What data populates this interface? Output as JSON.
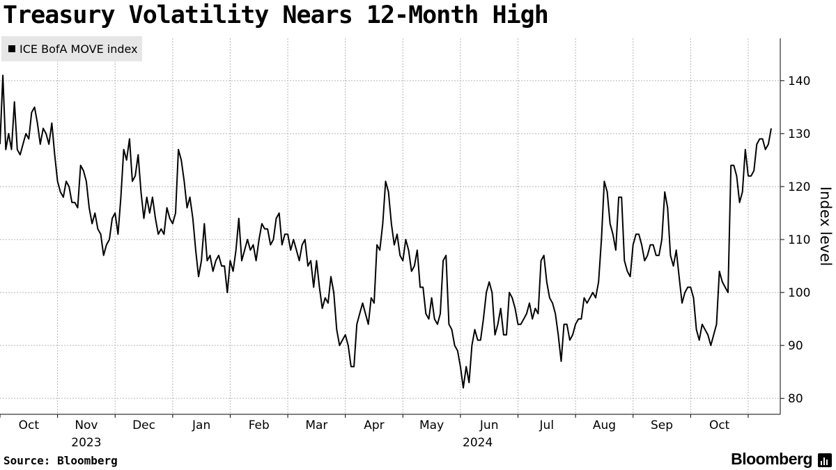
{
  "header": {
    "title": "Treasury Volatility Nears 12-Month High"
  },
  "footer": {
    "source": "Source: Bloomberg",
    "brand": "Bloomberg"
  },
  "colors": {
    "line": "#000000",
    "grid": "#b3b3b3",
    "legend_bg": "#e6e6e6"
  },
  "chart_data": {
    "type": "line",
    "title": "Treasury Volatility Nears 12-Month High",
    "ylabel": "Index level",
    "xlabel": "",
    "ylim": [
      77,
      148
    ],
    "y_ticks": [
      80,
      90,
      100,
      110,
      120,
      130,
      140
    ],
    "y_tick_labels": [
      "80",
      "90",
      "100",
      "110",
      "120",
      "130",
      "140"
    ],
    "x_range": [
      0,
      13.4
    ],
    "x_tick_positions": [
      0,
      1,
      2,
      3,
      4,
      5,
      6,
      7,
      8,
      9,
      10,
      11,
      12,
      13
    ],
    "month_labels": [
      {
        "label": "Oct",
        "x": 0.5
      },
      {
        "label": "Nov",
        "x": 1.5
      },
      {
        "label": "Dec",
        "x": 2.5
      },
      {
        "label": "Jan",
        "x": 3.5
      },
      {
        "label": "Feb",
        "x": 4.5
      },
      {
        "label": "Mar",
        "x": 5.5
      },
      {
        "label": "Apr",
        "x": 6.5
      },
      {
        "label": "May",
        "x": 7.5
      },
      {
        "label": "Jun",
        "x": 8.5
      },
      {
        "label": "Jul",
        "x": 9.5
      },
      {
        "label": "Aug",
        "x": 10.5
      },
      {
        "label": "Sep",
        "x": 11.5
      },
      {
        "label": "Oct",
        "x": 12.5
      }
    ],
    "year_labels": [
      {
        "label": "2023",
        "x": 1.5
      },
      {
        "label": "2024",
        "x": 8.3
      }
    ],
    "grid": true,
    "legend_position": "top-left",
    "series": [
      {
        "name": "ICE BofA MOVE index",
        "points": [
          [
            0.0,
            128
          ],
          [
            0.05,
            141
          ],
          [
            0.1,
            127
          ],
          [
            0.15,
            130
          ],
          [
            0.2,
            127
          ],
          [
            0.25,
            136
          ],
          [
            0.3,
            127
          ],
          [
            0.35,
            126
          ],
          [
            0.4,
            128
          ],
          [
            0.45,
            130
          ],
          [
            0.5,
            129
          ],
          [
            0.55,
            134
          ],
          [
            0.6,
            135
          ],
          [
            0.65,
            132
          ],
          [
            0.7,
            128
          ],
          [
            0.75,
            131
          ],
          [
            0.8,
            130
          ],
          [
            0.85,
            128
          ],
          [
            0.9,
            132
          ],
          [
            0.95,
            126
          ],
          [
            1.0,
            121
          ],
          [
            1.05,
            119
          ],
          [
            1.1,
            118
          ],
          [
            1.15,
            121
          ],
          [
            1.2,
            120
          ],
          [
            1.25,
            117
          ],
          [
            1.3,
            117
          ],
          [
            1.35,
            116
          ],
          [
            1.4,
            124
          ],
          [
            1.45,
            123
          ],
          [
            1.5,
            121
          ],
          [
            1.55,
            116
          ],
          [
            1.6,
            113
          ],
          [
            1.65,
            115
          ],
          [
            1.7,
            112
          ],
          [
            1.75,
            111
          ],
          [
            1.8,
            107
          ],
          [
            1.85,
            109
          ],
          [
            1.9,
            110
          ],
          [
            1.95,
            114
          ],
          [
            2.0,
            115
          ],
          [
            2.05,
            111
          ],
          [
            2.1,
            118
          ],
          [
            2.15,
            127
          ],
          [
            2.2,
            125
          ],
          [
            2.25,
            129
          ],
          [
            2.3,
            121
          ],
          [
            2.35,
            122
          ],
          [
            2.4,
            126
          ],
          [
            2.45,
            119
          ],
          [
            2.5,
            114
          ],
          [
            2.55,
            118
          ],
          [
            2.6,
            115
          ],
          [
            2.65,
            118
          ],
          [
            2.7,
            114
          ],
          [
            2.75,
            111
          ],
          [
            2.8,
            112
          ],
          [
            2.85,
            111
          ],
          [
            2.9,
            116
          ],
          [
            2.95,
            114
          ],
          [
            3.0,
            113
          ],
          [
            3.05,
            115
          ],
          [
            3.1,
            127
          ],
          [
            3.15,
            125
          ],
          [
            3.2,
            121
          ],
          [
            3.25,
            116
          ],
          [
            3.3,
            118
          ],
          [
            3.35,
            114
          ],
          [
            3.4,
            108
          ],
          [
            3.45,
            103
          ],
          [
            3.5,
            106
          ],
          [
            3.55,
            113
          ],
          [
            3.6,
            106
          ],
          [
            3.65,
            107
          ],
          [
            3.7,
            104
          ],
          [
            3.75,
            106
          ],
          [
            3.8,
            107
          ],
          [
            3.85,
            105
          ],
          [
            3.9,
            105
          ],
          [
            3.95,
            100
          ],
          [
            4.0,
            106
          ],
          [
            4.05,
            104
          ],
          [
            4.1,
            108
          ],
          [
            4.15,
            114
          ],
          [
            4.2,
            106
          ],
          [
            4.25,
            108
          ],
          [
            4.3,
            110
          ],
          [
            4.35,
            108
          ],
          [
            4.4,
            109
          ],
          [
            4.45,
            106
          ],
          [
            4.5,
            110
          ],
          [
            4.55,
            113
          ],
          [
            4.6,
            112
          ],
          [
            4.65,
            112
          ],
          [
            4.7,
            109
          ],
          [
            4.75,
            110
          ],
          [
            4.8,
            114
          ],
          [
            4.85,
            115
          ],
          [
            4.9,
            109
          ],
          [
            4.95,
            111
          ],
          [
            5.0,
            111
          ],
          [
            5.05,
            108
          ],
          [
            5.1,
            110
          ],
          [
            5.15,
            108
          ],
          [
            5.2,
            106
          ],
          [
            5.25,
            109
          ],
          [
            5.3,
            110
          ],
          [
            5.35,
            105
          ],
          [
            5.4,
            106
          ],
          [
            5.45,
            101
          ],
          [
            5.5,
            106
          ],
          [
            5.55,
            101
          ],
          [
            5.6,
            97
          ],
          [
            5.65,
            99
          ],
          [
            5.7,
            98
          ],
          [
            5.75,
            103
          ],
          [
            5.8,
            100
          ],
          [
            5.85,
            93
          ],
          [
            5.9,
            90
          ],
          [
            5.95,
            91
          ],
          [
            6.0,
            92
          ],
          [
            6.05,
            90
          ],
          [
            6.1,
            86
          ],
          [
            6.15,
            86
          ],
          [
            6.2,
            94
          ],
          [
            6.25,
            96
          ],
          [
            6.3,
            98
          ],
          [
            6.35,
            96
          ],
          [
            6.4,
            94
          ],
          [
            6.45,
            99
          ],
          [
            6.5,
            98
          ],
          [
            6.55,
            109
          ],
          [
            6.6,
            108
          ],
          [
            6.65,
            113
          ],
          [
            6.7,
            121
          ],
          [
            6.75,
            119
          ],
          [
            6.8,
            113
          ],
          [
            6.85,
            109
          ],
          [
            6.9,
            111
          ],
          [
            6.95,
            107
          ],
          [
            7.0,
            106
          ],
          [
            7.05,
            110
          ],
          [
            7.1,
            108
          ],
          [
            7.15,
            104
          ],
          [
            7.2,
            105
          ],
          [
            7.25,
            108
          ],
          [
            7.3,
            101
          ],
          [
            7.35,
            101
          ],
          [
            7.4,
            96
          ],
          [
            7.45,
            95
          ],
          [
            7.5,
            99
          ],
          [
            7.55,
            95
          ],
          [
            7.6,
            94
          ],
          [
            7.65,
            96
          ],
          [
            7.7,
            106
          ],
          [
            7.75,
            107
          ],
          [
            7.8,
            94
          ],
          [
            7.85,
            93
          ],
          [
            7.9,
            90
          ],
          [
            7.95,
            89
          ],
          [
            8.0,
            86
          ],
          [
            8.05,
            82
          ],
          [
            8.1,
            86
          ],
          [
            8.15,
            83
          ],
          [
            8.2,
            90
          ],
          [
            8.25,
            93
          ],
          [
            8.3,
            91
          ],
          [
            8.35,
            91
          ],
          [
            8.4,
            95
          ],
          [
            8.45,
            100
          ],
          [
            8.5,
            102
          ],
          [
            8.55,
            100
          ],
          [
            8.6,
            92
          ],
          [
            8.65,
            94
          ],
          [
            8.7,
            97
          ],
          [
            8.75,
            92
          ],
          [
            8.8,
            92
          ],
          [
            8.85,
            100
          ],
          [
            8.9,
            99
          ],
          [
            8.95,
            97
          ],
          [
            9.0,
            94
          ],
          [
            9.05,
            94
          ],
          [
            9.1,
            95
          ],
          [
            9.15,
            96
          ],
          [
            9.2,
            98
          ],
          [
            9.25,
            95
          ],
          [
            9.3,
            97
          ],
          [
            9.35,
            96
          ],
          [
            9.4,
            106
          ],
          [
            9.45,
            107
          ],
          [
            9.5,
            102
          ],
          [
            9.55,
            99
          ],
          [
            9.6,
            98
          ],
          [
            9.65,
            96
          ],
          [
            9.7,
            92
          ],
          [
            9.75,
            87
          ],
          [
            9.8,
            94
          ],
          [
            9.85,
            94
          ],
          [
            9.9,
            91
          ],
          [
            9.95,
            92
          ],
          [
            10.0,
            94
          ],
          [
            10.05,
            95
          ],
          [
            10.1,
            95
          ],
          [
            10.15,
            99
          ],
          [
            10.2,
            98
          ],
          [
            10.25,
            99
          ],
          [
            10.3,
            100
          ],
          [
            10.35,
            99
          ],
          [
            10.4,
            102
          ],
          [
            10.45,
            110
          ],
          [
            10.5,
            121
          ],
          [
            10.55,
            119
          ],
          [
            10.6,
            113
          ],
          [
            10.65,
            111
          ],
          [
            10.7,
            108
          ],
          [
            10.75,
            118
          ],
          [
            10.8,
            118
          ],
          [
            10.85,
            106
          ],
          [
            10.9,
            104
          ],
          [
            10.95,
            103
          ],
          [
            11.0,
            109
          ],
          [
            11.05,
            111
          ],
          [
            11.1,
            111
          ],
          [
            11.15,
            109
          ],
          [
            11.2,
            106
          ],
          [
            11.25,
            107
          ],
          [
            11.3,
            109
          ],
          [
            11.35,
            109
          ],
          [
            11.4,
            107
          ],
          [
            11.45,
            107
          ],
          [
            11.5,
            110
          ],
          [
            11.55,
            119
          ],
          [
            11.6,
            116
          ],
          [
            11.65,
            107
          ],
          [
            11.7,
            105
          ],
          [
            11.75,
            108
          ],
          [
            11.8,
            103
          ],
          [
            11.85,
            98
          ],
          [
            11.9,
            100
          ],
          [
            11.95,
            101
          ],
          [
            12.0,
            101
          ],
          [
            12.05,
            99
          ],
          [
            12.1,
            93
          ],
          [
            12.15,
            91
          ],
          [
            12.2,
            94
          ],
          [
            12.25,
            93
          ],
          [
            12.3,
            92
          ],
          [
            12.35,
            90
          ],
          [
            12.4,
            92
          ],
          [
            12.45,
            94
          ],
          [
            12.5,
            104
          ],
          [
            12.55,
            102
          ],
          [
            12.6,
            101
          ],
          [
            12.65,
            100
          ],
          [
            12.7,
            124
          ],
          [
            12.75,
            124
          ],
          [
            12.8,
            122
          ],
          [
            12.85,
            117
          ],
          [
            12.9,
            119
          ],
          [
            12.95,
            127
          ],
          [
            13.0,
            122
          ],
          [
            13.05,
            122
          ],
          [
            13.1,
            123
          ],
          [
            13.15,
            128
          ],
          [
            13.2,
            129
          ],
          [
            13.25,
            129
          ],
          [
            13.3,
            127
          ],
          [
            13.35,
            128
          ],
          [
            13.4,
            131
          ]
        ]
      }
    ]
  }
}
